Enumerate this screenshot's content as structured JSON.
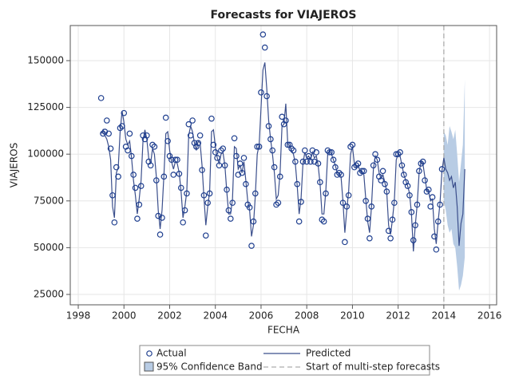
{
  "chart_data": {
    "type": "line",
    "title": "Forecasts for VIAJEROS",
    "x_label": "FECHA",
    "y_label": "VIAJEROS",
    "x": [
      1999,
      1999.083,
      1999.167,
      1999.25,
      1999.333,
      1999.417,
      1999.5,
      1999.583,
      1999.667,
      1999.75,
      1999.833,
      1999.917,
      2000,
      2000.083,
      2000.167,
      2000.25,
      2000.333,
      2000.417,
      2000.5,
      2000.583,
      2000.667,
      2000.75,
      2000.833,
      2000.917,
      2001,
      2001.083,
      2001.167,
      2001.25,
      2001.333,
      2001.417,
      2001.5,
      2001.583,
      2001.667,
      2001.75,
      2001.833,
      2001.917,
      2002,
      2002.083,
      2002.167,
      2002.25,
      2002.333,
      2002.417,
      2002.5,
      2002.583,
      2002.667,
      2002.75,
      2002.833,
      2002.917,
      2003,
      2003.083,
      2003.167,
      2003.25,
      2003.333,
      2003.417,
      2003.5,
      2003.583,
      2003.667,
      2003.75,
      2003.833,
      2003.917,
      2004,
      2004.083,
      2004.167,
      2004.25,
      2004.333,
      2004.417,
      2004.5,
      2004.583,
      2004.667,
      2004.75,
      2004.833,
      2004.917,
      2005,
      2005.083,
      2005.167,
      2005.25,
      2005.333,
      2005.417,
      2005.5,
      2005.583,
      2005.667,
      2005.75,
      2005.833,
      2005.917,
      2006,
      2006.083,
      2006.167,
      2006.25,
      2006.333,
      2006.417,
      2006.5,
      2006.583,
      2006.667,
      2006.75,
      2006.833,
      2006.917,
      2007,
      2007.083,
      2007.167,
      2007.25,
      2007.333,
      2007.417,
      2007.5,
      2007.583,
      2007.667,
      2007.75,
      2007.833,
      2007.917,
      2008,
      2008.083,
      2008.167,
      2008.25,
      2008.333,
      2008.417,
      2008.5,
      2008.583,
      2008.667,
      2008.75,
      2008.833,
      2008.917,
      2009,
      2009.083,
      2009.167,
      2009.25,
      2009.333,
      2009.417,
      2009.5,
      2009.583,
      2009.667,
      2009.75,
      2009.833,
      2009.917,
      2010,
      2010.083,
      2010.167,
      2010.25,
      2010.333,
      2010.417,
      2010.5,
      2010.583,
      2010.667,
      2010.75,
      2010.833,
      2010.917,
      2011,
      2011.083,
      2011.167,
      2011.25,
      2011.333,
      2011.417,
      2011.5,
      2011.583,
      2011.667,
      2011.75,
      2011.833,
      2011.917,
      2012,
      2012.083,
      2012.167,
      2012.25,
      2012.333,
      2012.417,
      2012.5,
      2012.583,
      2012.667,
      2012.75,
      2012.833,
      2012.917,
      2013,
      2013.083,
      2013.167,
      2013.25,
      2013.333,
      2013.417,
      2013.5,
      2013.583,
      2013.667,
      2013.75,
      2013.833,
      2013.917,
      2014,
      2014.083,
      2014.167,
      2014.25,
      2014.333,
      2014.417,
      2014.5,
      2014.583,
      2014.667,
      2014.75,
      2014.833,
      2014.917
    ],
    "series": [
      {
        "name": "Actual",
        "color": "#1f3f8f",
        "marker": "circle",
        "values": [
          130000,
          111000,
          112000,
          118000,
          111000,
          103000,
          78000,
          63500,
          93000,
          88000,
          114000,
          115000,
          122000,
          104000,
          102000,
          111000,
          99000,
          89000,
          82000,
          65500,
          73000,
          83000,
          110000,
          108000,
          110000,
          96000,
          94000,
          105000,
          104000,
          86000,
          67000,
          57000,
          66000,
          88000,
          119500,
          107000,
          99000,
          97000,
          89000,
          97000,
          97000,
          89500,
          82000,
          63500,
          70000,
          79000,
          116000,
          110000,
          118000,
          106000,
          104000,
          106000,
          110000,
          91500,
          78000,
          56500,
          74000,
          79000,
          119000,
          105000,
          101000,
          98000,
          94000,
          102000,
          103000,
          94000,
          81000,
          70000,
          65500,
          74000,
          108500,
          99000,
          89000,
          95000,
          90000,
          98000,
          84000,
          73000,
          71500,
          51000,
          64000,
          79000,
          104000,
          104000,
          133000,
          164000,
          157000,
          131000,
          115000,
          108000,
          102000,
          93000,
          73000,
          74000,
          88000,
          120000,
          116000,
          118000,
          105000,
          105000,
          103000,
          102000,
          96000,
          84000,
          64000,
          74500,
          96000,
          102000,
          96000,
          99000,
          96000,
          102000,
          96000,
          101000,
          95000,
          85000,
          65000,
          64000,
          79000,
          102000,
          101000,
          101000,
          97000,
          93000,
          89000,
          90000,
          89000,
          74000,
          53000,
          72000,
          78000,
          104000,
          105000,
          93000,
          94000,
          95000,
          90000,
          91000,
          91000,
          75000,
          65500,
          55000,
          72000,
          94000,
          100000,
          97000,
          88000,
          86000,
          91000,
          84000,
          80000,
          59000,
          55000,
          65000,
          74000,
          100000,
          100000,
          101000,
          94000,
          89000,
          85000,
          83000,
          78000,
          69000,
          54000,
          62000,
          73000,
          91000,
          95000,
          96000,
          86000,
          80000,
          81000,
          72000,
          77000,
          56000,
          49000,
          64000,
          73000,
          92000,
          null,
          null,
          null,
          null,
          null,
          null,
          null,
          null,
          null,
          null,
          null,
          null
        ]
      },
      {
        "name": "Predicted",
        "color": "#3b4f8c",
        "values": [
          111000,
          113000,
          110000,
          108000,
          104000,
          97000,
          72000,
          66000,
          90000,
          93000,
          112000,
          123000,
          117000,
          108000,
          105000,
          107000,
          98000,
          86000,
          78000,
          68000,
          76000,
          86000,
          107000,
          113000,
          108000,
          98000,
          95000,
          103000,
          100000,
          88000,
          70000,
          60000,
          70000,
          89000,
          111000,
          112000,
          102000,
          96000,
          92000,
          96000,
          95000,
          90000,
          80000,
          66000,
          72000,
          80000,
          110000,
          115000,
          112000,
          106000,
          102000,
          107000,
          106000,
          94000,
          77000,
          62000,
          72000,
          80000,
          112000,
          113000,
          104000,
          98000,
          95000,
          100000,
          101000,
          94000,
          80000,
          68000,
          68000,
          76000,
          104000,
          103000,
          92000,
          94000,
          90000,
          96000,
          86000,
          75000,
          70000,
          56000,
          62000,
          78000,
          100000,
          105000,
          125000,
          145000,
          149000,
          135000,
          118000,
          108000,
          100000,
          90000,
          76000,
          78000,
          90000,
          115000,
          116000,
          127000,
          106000,
          104000,
          102000,
          100000,
          95000,
          83000,
          68000,
          76000,
          95000,
          101000,
          98000,
          99000,
          97000,
          101000,
          98000,
          99000,
          94000,
          84000,
          68000,
          68000,
          80000,
          100000,
          102000,
          100000,
          97000,
          94000,
          90000,
          90000,
          88000,
          75000,
          58000,
          70000,
          80000,
          100000,
          104000,
          95000,
          93000,
          94000,
          91000,
          90000,
          89000,
          76000,
          64000,
          58000,
          72000,
          92000,
          99000,
          97000,
          90000,
          87000,
          89000,
          85000,
          80000,
          62000,
          57000,
          65000,
          75000,
          97000,
          100000,
          99000,
          94000,
          89000,
          86000,
          83000,
          79000,
          68000,
          48000,
          62000,
          73000,
          90000,
          96000,
          95000,
          88000,
          81000,
          80000,
          75000,
          76000,
          60000,
          52000,
          64000,
          74000,
          91000,
          98000,
          92000,
          90000,
          86000,
          88000,
          82000,
          85000,
          72000,
          51000,
          63000,
          68000,
          92000
        ]
      }
    ],
    "band": {
      "name": "95% Confidence Band",
      "color": "#b8cce4",
      "x": [
        2014,
        2014.083,
        2014.167,
        2014.25,
        2014.333,
        2014.417,
        2014.5,
        2014.583,
        2014.667,
        2014.75,
        2014.833,
        2014.917
      ],
      "lower": [
        75000,
        70000,
        62000,
        58000,
        60000,
        52000,
        50000,
        40000,
        27000,
        30000,
        35000,
        45000
      ],
      "upper": [
        112000,
        110000,
        105000,
        115000,
        112000,
        108000,
        113000,
        100000,
        85000,
        95000,
        105000,
        140000
      ]
    },
    "refline": {
      "name": "Start of multi-step forecasts",
      "value": 2014,
      "color": "#999999"
    },
    "xlim": [
      1997.65,
      2016.31
    ],
    "ylim": [
      19450,
      168770
    ],
    "xticks": [
      1998,
      2000,
      2002,
      2004,
      2006,
      2008,
      2010,
      2012,
      2014,
      2016
    ],
    "yticks": [
      25000,
      50000,
      75000,
      100000,
      125000,
      150000
    ],
    "grid": true
  }
}
